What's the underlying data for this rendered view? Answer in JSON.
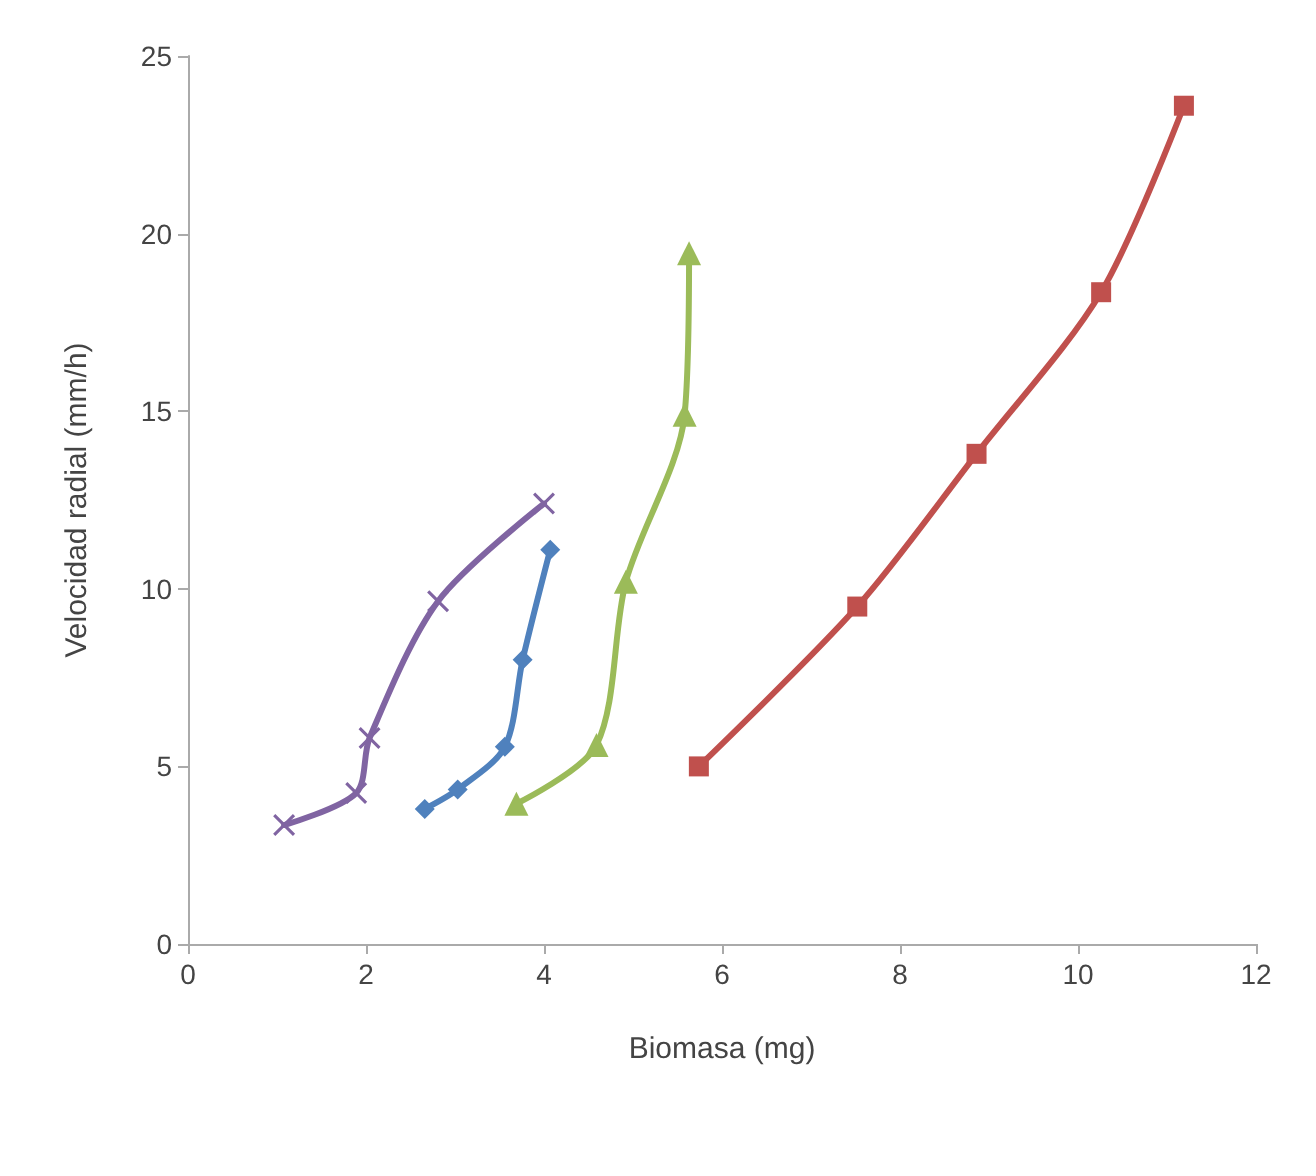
{
  "chart_data": {
    "type": "line",
    "xlabel": "Biomasa (mg)",
    "ylabel": "Velocidad radial (mm/h)",
    "xlim": [
      0,
      12
    ],
    "xticks": [
      0,
      2,
      4,
      6,
      8,
      10,
      12
    ],
    "ylim": [
      0,
      25
    ],
    "yticks": [
      0,
      5,
      10,
      15,
      20,
      25
    ],
    "grid": false,
    "line_style": "solid",
    "series": [
      {
        "color": "#4f81bd",
        "marker": "diamond",
        "x": [
          2.66,
          3.03,
          3.56,
          3.76,
          4.07
        ],
        "values": [
          3.8,
          4.35,
          5.55,
          8.0,
          11.1
        ]
      },
      {
        "color": "#c0504d",
        "marker": "square",
        "x": [
          5.74,
          7.52,
          8.86,
          10.26,
          11.19
        ],
        "values": [
          5.0,
          9.5,
          13.8,
          18.35,
          23.6
        ]
      },
      {
        "color": "#9bbb59",
        "marker": "triangle",
        "x": [
          3.69,
          4.59,
          4.92,
          5.58,
          5.63
        ],
        "values": [
          3.95,
          5.6,
          10.2,
          14.9,
          19.45
        ]
      },
      {
        "color": "#8064a2",
        "marker": "cross",
        "x": [
          1.08,
          1.89,
          2.04,
          2.81,
          4.0
        ],
        "values": [
          3.35,
          4.25,
          5.8,
          9.65,
          12.4
        ]
      }
    ]
  }
}
